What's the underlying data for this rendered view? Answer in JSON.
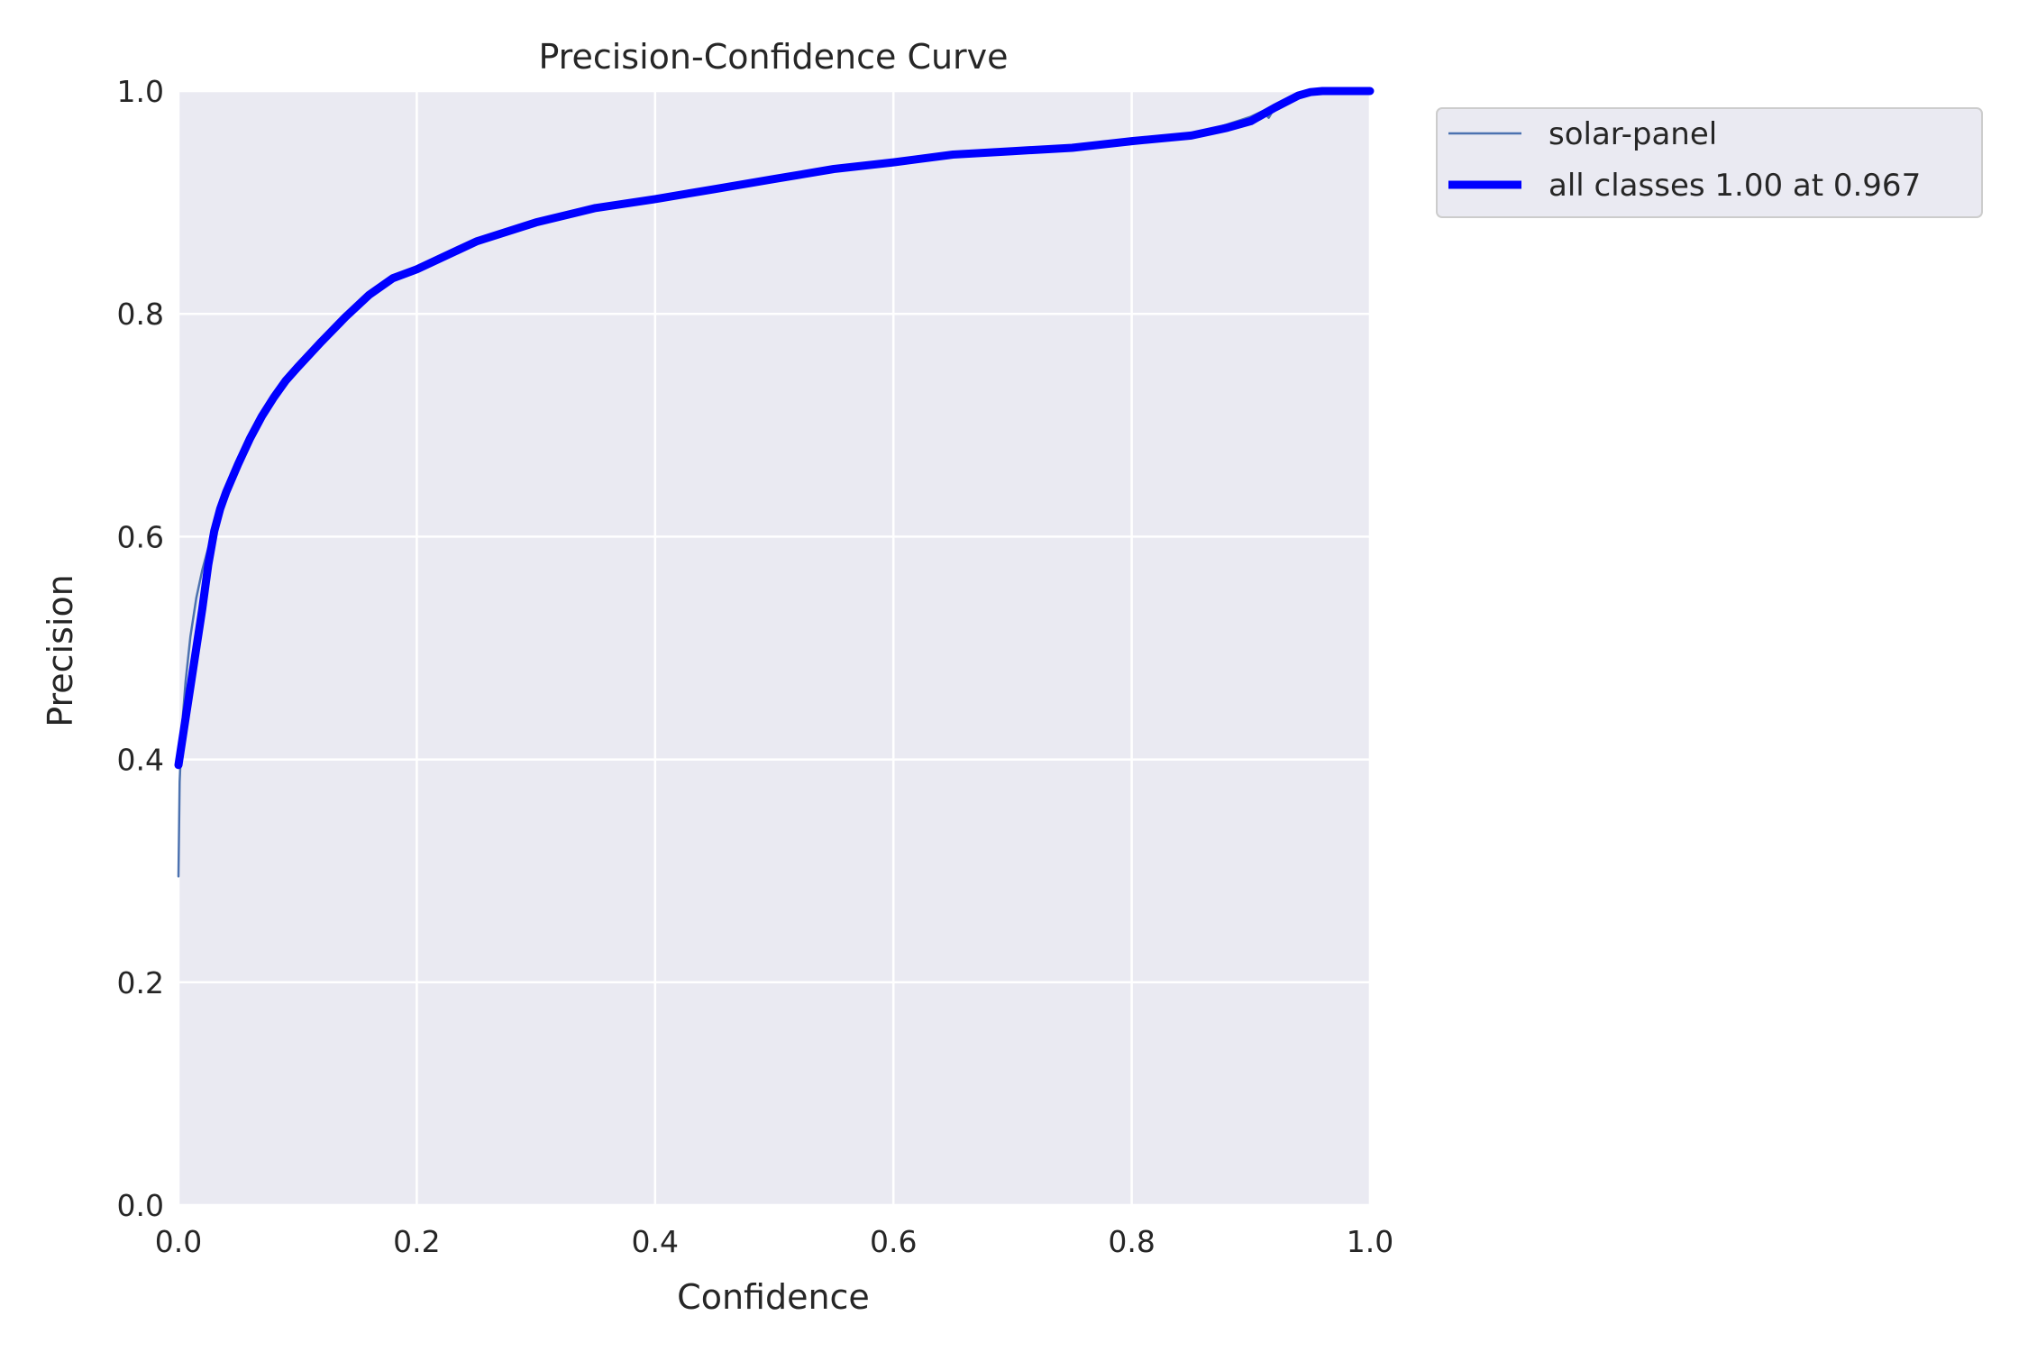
{
  "chart_data": {
    "type": "line",
    "title": "Precision-Confidence Curve",
    "xlabel": "Confidence",
    "ylabel": "Precision",
    "xlim": [
      0,
      1
    ],
    "ylim": [
      0,
      1
    ],
    "xticks": [
      "0.0",
      "0.2",
      "0.4",
      "0.6",
      "0.8",
      "1.0"
    ],
    "yticks": [
      "0.0",
      "0.2",
      "0.4",
      "0.6",
      "0.8",
      "1.0"
    ],
    "grid": true,
    "legend_position": "outside-top-right",
    "background_color": "#eaeaf2",
    "series": [
      {
        "name": "solar-panel",
        "color": "#4c72b0",
        "x": [
          0.0,
          0.001,
          0.003,
          0.006,
          0.01,
          0.015,
          0.02,
          0.025,
          0.03,
          0.035,
          0.04,
          0.05,
          0.06,
          0.07,
          0.08,
          0.09,
          0.1,
          0.12,
          0.14,
          0.16,
          0.18,
          0.2,
          0.25,
          0.3,
          0.35,
          0.4,
          0.45,
          0.5,
          0.55,
          0.6,
          0.65,
          0.7,
          0.75,
          0.8,
          0.85,
          0.88,
          0.9,
          0.91,
          0.915,
          0.92,
          0.93,
          0.94,
          0.95,
          0.96,
          0.97,
          1.0
        ],
        "y": [
          0.295,
          0.38,
          0.43,
          0.47,
          0.51,
          0.545,
          0.57,
          0.59,
          0.605,
          0.625,
          0.64,
          0.665,
          0.688,
          0.708,
          0.725,
          0.74,
          0.752,
          0.775,
          0.797,
          0.817,
          0.832,
          0.84,
          0.865,
          0.882,
          0.895,
          0.903,
          0.912,
          0.921,
          0.93,
          0.936,
          0.943,
          0.946,
          0.949,
          0.955,
          0.96,
          0.97,
          0.977,
          0.982,
          0.976,
          0.985,
          0.99,
          0.996,
          1.0,
          1.0,
          1.0,
          1.0
        ]
      },
      {
        "name": "all classes 1.00 at 0.967",
        "color": "#0000ff",
        "x": [
          0.0,
          0.005,
          0.01,
          0.015,
          0.02,
          0.025,
          0.03,
          0.035,
          0.04,
          0.05,
          0.06,
          0.07,
          0.08,
          0.09,
          0.1,
          0.12,
          0.14,
          0.16,
          0.18,
          0.2,
          0.25,
          0.3,
          0.35,
          0.4,
          0.45,
          0.5,
          0.55,
          0.6,
          0.65,
          0.7,
          0.75,
          0.8,
          0.85,
          0.88,
          0.9,
          0.92,
          0.94,
          0.95,
          0.96,
          0.97,
          1.0
        ],
        "y": [
          0.395,
          0.43,
          0.465,
          0.5,
          0.535,
          0.575,
          0.605,
          0.625,
          0.64,
          0.665,
          0.688,
          0.708,
          0.725,
          0.74,
          0.752,
          0.775,
          0.797,
          0.817,
          0.832,
          0.84,
          0.865,
          0.882,
          0.895,
          0.903,
          0.912,
          0.921,
          0.93,
          0.936,
          0.943,
          0.946,
          0.949,
          0.955,
          0.96,
          0.967,
          0.973,
          0.985,
          0.996,
          0.999,
          1.0,
          1.0,
          1.0
        ]
      }
    ]
  }
}
